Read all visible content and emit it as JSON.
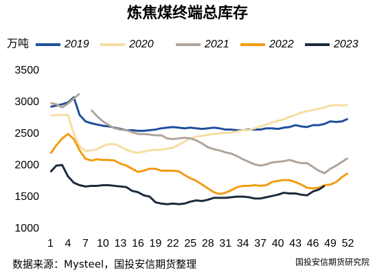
{
  "chart_data": {
    "type": "line",
    "title": "炼焦煤终端总库存",
    "y_label": "万吨",
    "source": "数据来源：Mysteel，国投安信期货整理",
    "credit": "国投安信期货研究院",
    "x": [
      1,
      2,
      3,
      4,
      5,
      6,
      7,
      8,
      9,
      10,
      11,
      12,
      13,
      14,
      15,
      16,
      17,
      18,
      19,
      20,
      21,
      22,
      23,
      24,
      25,
      26,
      27,
      28,
      29,
      30,
      31,
      32,
      33,
      34,
      35,
      36,
      37,
      38,
      39,
      40,
      41,
      42,
      43,
      44,
      45,
      46,
      47,
      48,
      49,
      50,
      51,
      52
    ],
    "xlim": [
      0,
      53
    ],
    "xticks": [
      1,
      4,
      7,
      10,
      13,
      16,
      19,
      22,
      25,
      28,
      31,
      34,
      37,
      40,
      43,
      46,
      49,
      52
    ],
    "ylim": [
      1000,
      3500
    ],
    "yticks": [
      1000,
      1500,
      2000,
      2500,
      3000,
      3500
    ],
    "grid": false,
    "series": [
      {
        "name": "2019",
        "color": "#1f4e9c",
        "values": [
          2930,
          2950,
          2970,
          3000,
          3080,
          2800,
          2700,
          2670,
          2650,
          2630,
          2620,
          2600,
          2580,
          2560,
          2560,
          2550,
          2550,
          2560,
          2570,
          2590,
          2600,
          2610,
          2600,
          2590,
          2600,
          2590,
          2580,
          2590,
          2600,
          2590,
          2570,
          2570,
          2560,
          2560,
          2570,
          2570,
          2570,
          2590,
          2590,
          2580,
          2600,
          2610,
          2640,
          2620,
          2610,
          2640,
          2640,
          2660,
          2700,
          2690,
          2700,
          2740
        ]
      },
      {
        "name": "2020",
        "color": "#f5dea0",
        "values": [
          2790,
          2800,
          2800,
          2800,
          2510,
          2300,
          2230,
          2240,
          2260,
          2310,
          2340,
          2340,
          2300,
          2250,
          2220,
          2200,
          2220,
          2240,
          2250,
          2250,
          2270,
          2280,
          2330,
          2380,
          2430,
          2460,
          2470,
          2490,
          2500,
          2510,
          2520,
          2520,
          2540,
          2560,
          2560,
          2590,
          2620,
          2650,
          2680,
          2710,
          2730,
          2770,
          2800,
          2840,
          2860,
          2880,
          2900,
          2920,
          2950,
          2960,
          2950,
          2960
        ]
      },
      {
        "name": "2021",
        "color": "#b0a49a",
        "values": [
          2990,
          2970,
          2920,
          2980,
          3060,
          3140,
          null,
          2880,
          2780,
          2700,
          2640,
          2590,
          2570,
          2560,
          2530,
          2500,
          2500,
          2490,
          2480,
          2480,
          2430,
          2420,
          2430,
          2440,
          2430,
          2400,
          2350,
          2290,
          2260,
          2240,
          2210,
          2190,
          2150,
          2100,
          2060,
          2020,
          2000,
          2020,
          2050,
          2060,
          2070,
          2090,
          2060,
          2040,
          2040,
          1980,
          1920,
          1880,
          1950,
          2000,
          2060,
          2120
        ]
      },
      {
        "name": "2022",
        "color": "#f29b11",
        "values": [
          2190,
          2320,
          2430,
          2500,
          2420,
          2240,
          2110,
          2080,
          2100,
          2090,
          2090,
          2080,
          2030,
          2000,
          1950,
          1900,
          1920,
          1950,
          1950,
          1920,
          1920,
          1920,
          1910,
          1850,
          1800,
          1760,
          1700,
          1640,
          1580,
          1550,
          1570,
          1610,
          1660,
          1680,
          1680,
          1690,
          1680,
          1690,
          1740,
          1760,
          1770,
          1770,
          1740,
          1700,
          1650,
          1640,
          1650,
          1690,
          1700,
          1740,
          1820,
          1880
        ]
      },
      {
        "name": "2023",
        "color": "#1b2a3b",
        "values": [
          1900,
          2000,
          2010,
          1830,
          1730,
          1690,
          1670,
          1680,
          1680,
          1690,
          1690,
          1680,
          1670,
          1660,
          1600,
          1580,
          1530,
          1510,
          1420,
          1400,
          1390,
          1400,
          1390,
          1400,
          1430,
          1450,
          1440,
          1460,
          1490,
          1490,
          1490,
          1500,
          1510,
          1510,
          1500,
          1480,
          1480,
          1500,
          1520,
          1540,
          1570,
          1560,
          1560,
          1540,
          1530,
          1590,
          1620,
          1680,
          null,
          null,
          null,
          null
        ]
      }
    ]
  }
}
